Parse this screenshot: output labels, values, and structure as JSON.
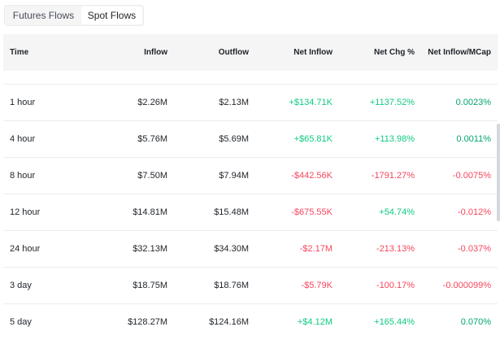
{
  "tabs": [
    {
      "label": "Futures Flows",
      "active": false
    },
    {
      "label": "Spot Flows",
      "active": true
    }
  ],
  "table": {
    "headers": [
      "Time",
      "Inflow",
      "Outflow",
      "Net Inflow",
      "Net Chg %",
      "Net Inflow/MCap"
    ],
    "rows": [
      {
        "time": "1 hour",
        "inflow": "$2.26M",
        "outflow": "$2.13M",
        "net_inflow": "+$134.71K",
        "net_chg": "+1137.52%",
        "mcap": "0.0023%",
        "sign": [
          "pos",
          "pos",
          "pos"
        ]
      },
      {
        "time": "4 hour",
        "inflow": "$5.76M",
        "outflow": "$5.69M",
        "net_inflow": "+$65.81K",
        "net_chg": "+113.98%",
        "mcap": "0.0011%",
        "sign": [
          "pos",
          "pos",
          "pos"
        ]
      },
      {
        "time": "8 hour",
        "inflow": "$7.50M",
        "outflow": "$7.94M",
        "net_inflow": "-$442.56K",
        "net_chg": "-1791.27%",
        "mcap": "-0.0075%",
        "sign": [
          "neg",
          "neg",
          "neg"
        ]
      },
      {
        "time": "12 hour",
        "inflow": "$14.81M",
        "outflow": "$15.48M",
        "net_inflow": "-$675.55K",
        "net_chg": "+54.74%",
        "mcap": "-0.012%",
        "sign": [
          "neg",
          "pos",
          "neg"
        ]
      },
      {
        "time": "24 hour",
        "inflow": "$32.13M",
        "outflow": "$34.30M",
        "net_inflow": "-$2.17M",
        "net_chg": "-213.13%",
        "mcap": "-0.037%",
        "sign": [
          "neg",
          "neg",
          "neg"
        ]
      },
      {
        "time": "3 day",
        "inflow": "$18.75M",
        "outflow": "$18.76M",
        "net_inflow": "-$5.79K",
        "net_chg": "-100.17%",
        "mcap": "-0.000099%",
        "sign": [
          "neg",
          "neg",
          "neg"
        ]
      },
      {
        "time": "5 day",
        "inflow": "$128.27M",
        "outflow": "$124.16M",
        "net_inflow": "+$4.12M",
        "net_chg": "+165.44%",
        "mcap": "0.070%",
        "sign": [
          "pos",
          "pos",
          "pos"
        ]
      }
    ]
  },
  "colors": {
    "positive": "#0ecb81",
    "positive_mcap": "#03a66d",
    "negative": "#f6465d",
    "header_bg": "#f5f5f5",
    "border": "#eaecef"
  }
}
